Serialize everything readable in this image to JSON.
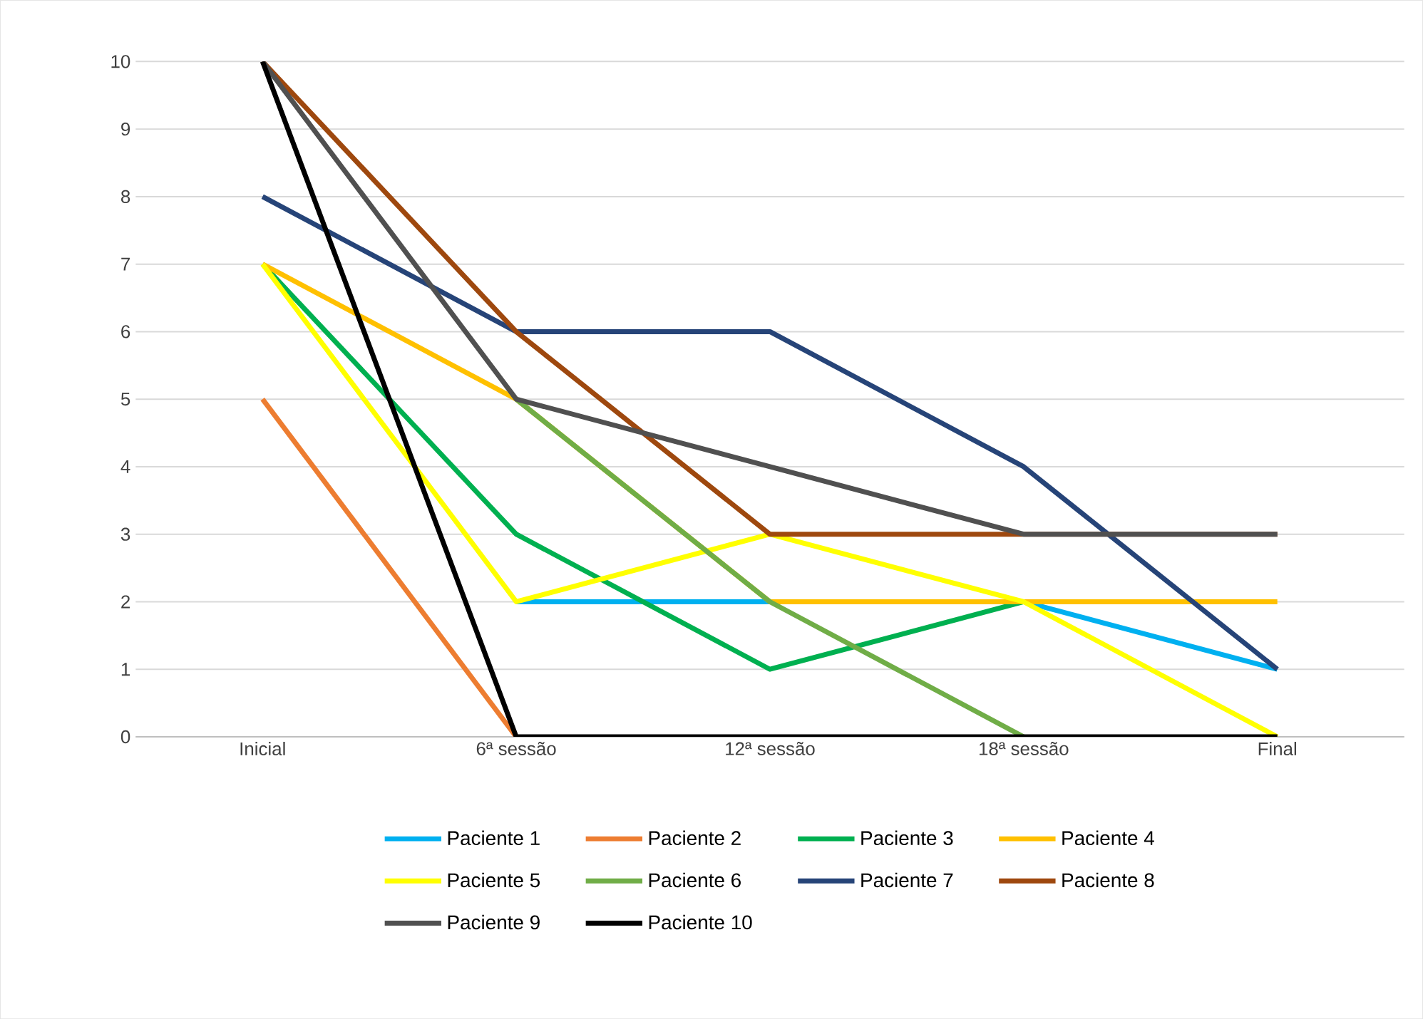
{
  "chart_data": {
    "type": "line",
    "categories": [
      "Inicial",
      "6ª sessão",
      "12ª sessão",
      "18ª sessão",
      "Final"
    ],
    "ylim": [
      0,
      10
    ],
    "yticks": [
      0,
      1,
      2,
      3,
      4,
      5,
      6,
      7,
      8,
      9,
      10
    ],
    "grid": "y",
    "legend": "bottom",
    "marker": "none",
    "line_style": "solid",
    "series": [
      {
        "name": "Paciente 1",
        "color": "#00b0f0",
        "values": [
          null,
          2,
          2,
          2,
          1
        ]
      },
      {
        "name": "Paciente 2",
        "color": "#ed7d31",
        "values": [
          5,
          0,
          null,
          null,
          null
        ]
      },
      {
        "name": "Paciente 3",
        "color": "#00b050",
        "values": [
          7,
          3,
          1,
          2,
          null
        ]
      },
      {
        "name": "Paciente 4",
        "color": "#ffc000",
        "values": [
          7,
          5,
          2,
          2,
          2
        ]
      },
      {
        "name": "Paciente 5",
        "color": "#ffff00",
        "values": [
          7,
          2,
          3,
          2,
          0
        ]
      },
      {
        "name": "Paciente 6",
        "color": "#70ad47",
        "values": [
          null,
          5,
          2,
          0,
          null
        ]
      },
      {
        "name": "Paciente 7",
        "color": "#264478",
        "values": [
          8,
          6,
          6,
          4,
          1
        ]
      },
      {
        "name": "Paciente 8",
        "color": "#9e480e",
        "values": [
          10,
          6,
          3,
          3,
          3
        ]
      },
      {
        "name": "Paciente 9",
        "color": "#505050",
        "values": [
          10,
          5,
          4,
          3,
          3
        ]
      },
      {
        "name": "Paciente 10",
        "color": "#000000",
        "values": [
          10,
          0,
          0,
          0,
          0
        ]
      }
    ]
  }
}
